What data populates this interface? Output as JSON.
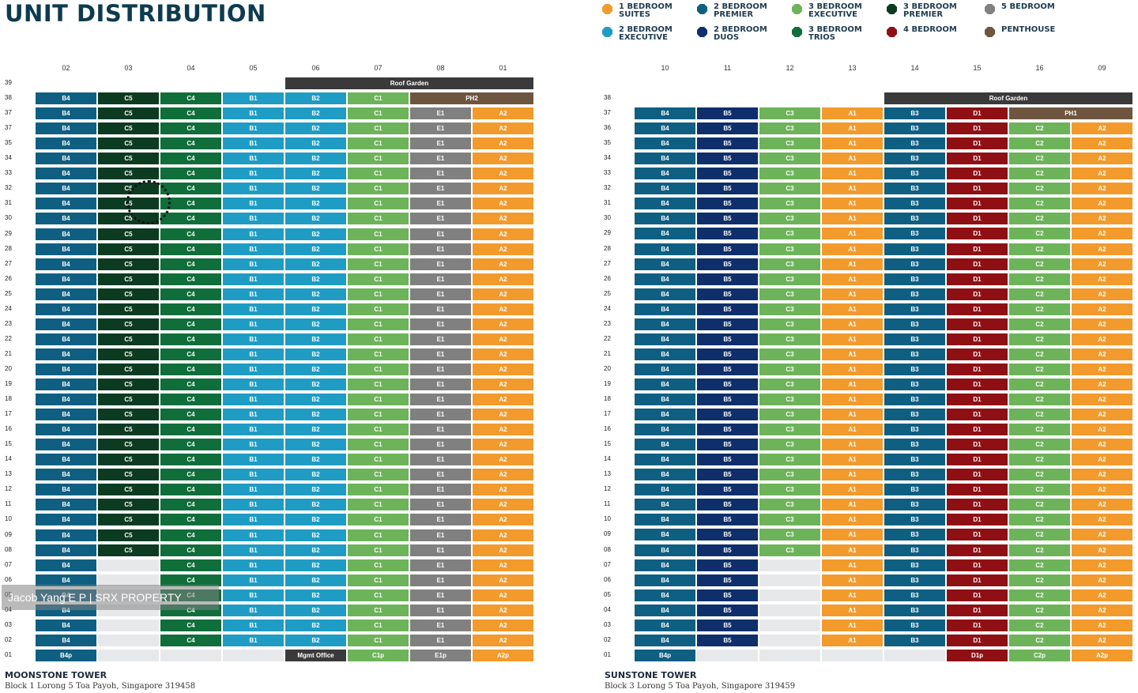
{
  "header": {
    "title": "UNIT DISTRIBUTION"
  },
  "legend": [
    {
      "label": "1 BEDROOM\nSUITES",
      "color": "#f39a2c",
      "icon": "octagon-swatch-icon"
    },
    {
      "label": "2 BEDROOM\nPREMIER",
      "color": "#0f5f82",
      "icon": "octagon-swatch-icon"
    },
    {
      "label": "3 BEDROOM\nEXECUTIVE",
      "color": "#6db35a",
      "icon": "octagon-swatch-icon"
    },
    {
      "label": "3 BEDROOM\nPREMIER",
      "color": "#0c3b22",
      "icon": "octagon-swatch-icon"
    },
    {
      "label": "5 BEDROOM",
      "color": "#808080",
      "icon": "octagon-swatch-icon"
    },
    {
      "label": "2 BEDROOM\nEXECUTIVE",
      "color": "#1f9cc4",
      "icon": "octagon-swatch-icon"
    },
    {
      "label": "2 BEDROOM\nDUOS",
      "color": "#0e2f6b",
      "icon": "octagon-swatch-icon"
    },
    {
      "label": "3 BEDROOM\nTRIOS",
      "color": "#0f6e3a",
      "icon": "octagon-swatch-icon"
    },
    {
      "label": "4 BEDROOM",
      "color": "#8f1014",
      "icon": "octagon-swatch-icon"
    },
    {
      "label": "PENTHOUSE",
      "color": "#6e5540",
      "icon": "octagon-swatch-icon"
    }
  ],
  "watermark": "Jacob Yang E P | SRX PROPERTY",
  "towers": [
    {
      "name": "MOONSTONE TOWER",
      "address": "Block 1 Lorong 5 Toa Payoh, Singapore 319458",
      "columns": [
        "02",
        "03",
        "04",
        "05",
        "06",
        "07",
        "08",
        "01"
      ],
      "floors": [
        "39",
        "38",
        "37",
        "37",
        "35",
        "34",
        "33",
        "32",
        "31",
        "30",
        "29",
        "28",
        "27",
        "26",
        "25",
        "24",
        "23",
        "22",
        "21",
        "20",
        "19",
        "18",
        "17",
        "16",
        "15",
        "14",
        "13",
        "12",
        "11",
        "10",
        "09",
        "08",
        "07",
        "06",
        "05",
        "04",
        "03",
        "02",
        "01"
      ],
      "roof_label": "Roof Garden",
      "penthouse_label": "PH2",
      "column_units": [
        {
          "std": "B4",
          "ground": "B4p",
          "color": "#0f5f82"
        },
        {
          "std": "C5",
          "ground": "",
          "color": "#0c3b22"
        },
        {
          "std": "C4",
          "ground": "",
          "color": "#0f6e3a"
        },
        {
          "std": "B1",
          "ground": "",
          "color": "#1f9cc4"
        },
        {
          "std": "B2",
          "ground": "Mgmt Office",
          "color": "#1f9cc4"
        },
        {
          "std": "C1",
          "ground": "C1p",
          "color": "#6db35a"
        },
        {
          "std": "E1",
          "ground": "E1p",
          "color": "#808080"
        },
        {
          "std": "A2",
          "ground": "A2p",
          "color": "#f39a2c"
        }
      ]
    },
    {
      "name": "SUNSTONE TOWER",
      "address": "Block 3 Lorong 5 Toa Payoh, Singapore 319459",
      "columns": [
        "10",
        "11",
        "12",
        "13",
        "14",
        "15",
        "16",
        "09"
      ],
      "floors": [
        "38",
        "37",
        "36",
        "35",
        "34",
        "33",
        "32",
        "31",
        "30",
        "29",
        "28",
        "27",
        "26",
        "25",
        "24",
        "23",
        "22",
        "21",
        "20",
        "19",
        "18",
        "17",
        "16",
        "15",
        "14",
        "13",
        "12",
        "11",
        "10",
        "09",
        "08",
        "07",
        "06",
        "05",
        "04",
        "03",
        "02",
        "01"
      ],
      "roof_label": "Roof Garden",
      "penthouse_label": "PH1",
      "column_units": [
        {
          "std": "B4",
          "ground": "B4p",
          "color": "#0f5f82"
        },
        {
          "std": "B5",
          "ground": "",
          "color": "#0e2f6b"
        },
        {
          "std": "C3",
          "ground": "",
          "color": "#6db35a"
        },
        {
          "std": "A1",
          "ground": "",
          "color": "#f39a2c"
        },
        {
          "std": "B3",
          "ground": "",
          "color": "#0f5f82"
        },
        {
          "std": "D1",
          "ground": "D1p",
          "color": "#8f1014"
        },
        {
          "std": "C2",
          "ground": "C2p",
          "color": "#6db35a"
        },
        {
          "std": "A2",
          "ground": "A2p",
          "color": "#f39a2c"
        }
      ]
    }
  ],
  "colors": {
    "roof": "#3a3a3a",
    "penthouse": "#6e5540",
    "mgmt": "#3a3a3a",
    "void": "#e6e8ea"
  }
}
